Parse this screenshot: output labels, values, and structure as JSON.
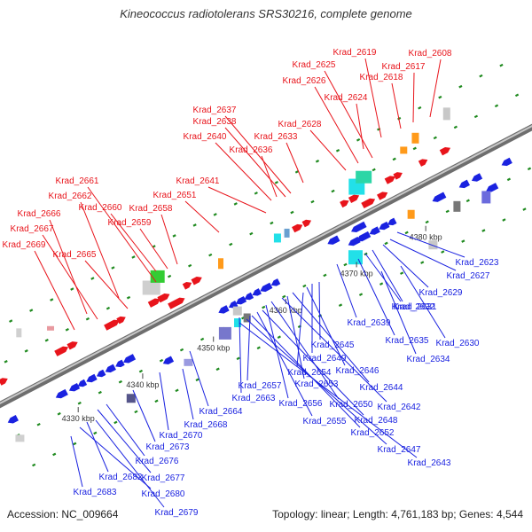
{
  "title": "Kineococcus radiotolerans SRS30216, complete genome",
  "footer": {
    "accession": "Accession: NC_009664",
    "summary": "Topology: linear; Length: 4,761,183 bp; Genes: 4,544"
  },
  "colors": {
    "forward": "#e8141b",
    "reverse": "#1a22e0",
    "axis": "#8a8a8a",
    "grid": "#1f8a1f",
    "rna": "#ff9a1a",
    "cyan": "#22e0e8",
    "green": "#33cc33"
  },
  "scale_labels": [
    "4330 kbp",
    "4340 kbp",
    "4350 kbp",
    "4360 kbp",
    "4370 kbp",
    "4380 kbp"
  ],
  "top_labels": [
    "Krad_2608",
    "Krad_2617",
    "Krad_2618",
    "Krad_2619",
    "Krad_2624",
    "Krad_2625",
    "Krad_2626",
    "Krad_2628",
    "Krad_2633",
    "Krad_2636",
    "Krad_2637",
    "Krad_2638",
    "Krad_2640",
    "Krad_2641",
    "Krad_2651",
    "Krad_2658",
    "Krad_2659",
    "Krad_2660",
    "Krad_2661",
    "Krad_2662",
    "Krad_2665",
    "Krad_2666",
    "Krad_2667",
    "Krad_2669"
  ],
  "bottom_labels": [
    "Krad_2623",
    "Krad_2627",
    "Krad_2629",
    "Krad_2631",
    "Krad_2632",
    "Krad_2630",
    "Krad_2635",
    "Krad_2634",
    "Krad_2639",
    "Krad_2645",
    "Krad_2649",
    "Krad_2646",
    "Krad_2654",
    "Krad_2644",
    "Krad_2653",
    "Krad_2642",
    "Krad_2657",
    "Krad_2650",
    "Krad_2663",
    "Krad_2656",
    "Krad_2648",
    "Krad_2664",
    "Krad_2655",
    "Krad_2652",
    "Krad_2668",
    "Krad_2647",
    "Krad_2670",
    "Krad_2643",
    "Krad_2673",
    "Krad_2676",
    "Krad_2677",
    "Krad_2682",
    "Krad_2680",
    "Krad_2683",
    "Krad_2679"
  ]
}
